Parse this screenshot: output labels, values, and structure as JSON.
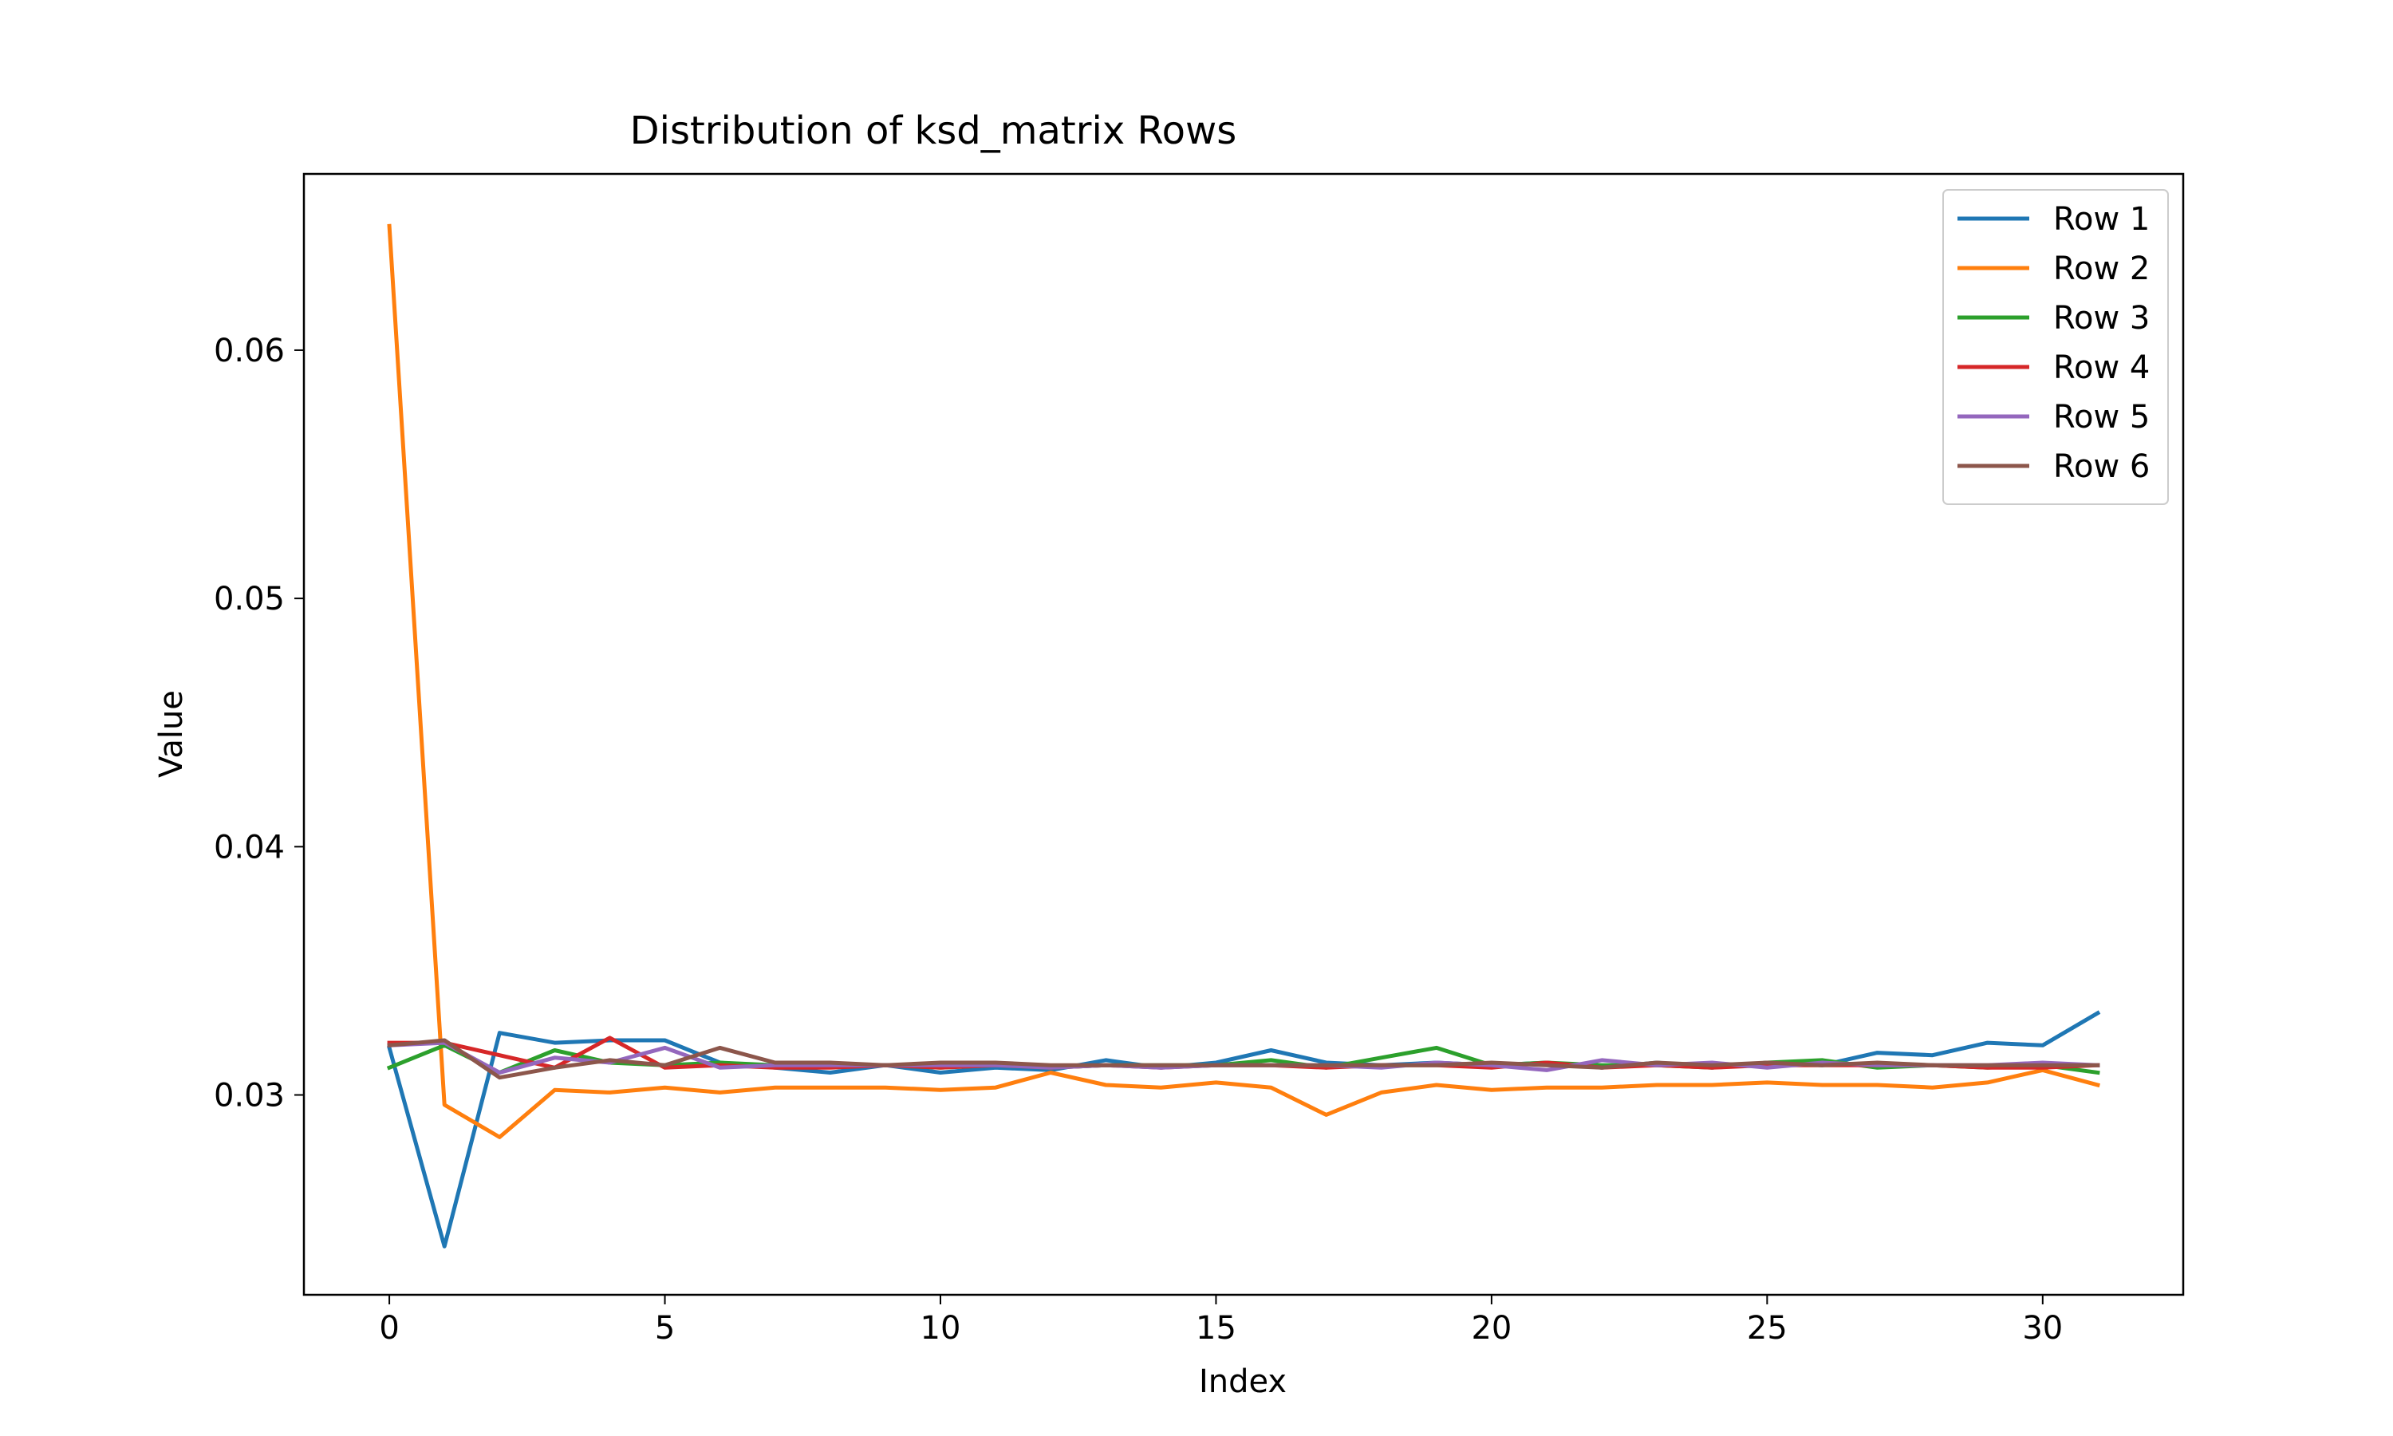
{
  "chart_data": {
    "type": "line",
    "title": "Distribution of ksd_matrix Rows",
    "xlabel": "Index",
    "ylabel": "Value",
    "xlim": [
      -1.55,
      32.55
    ],
    "ylim": [
      0.02195,
      0.0671
    ],
    "x_ticks": [
      0,
      5,
      10,
      15,
      20,
      25,
      30
    ],
    "x_tick_labels": [
      "0",
      "5",
      "10",
      "15",
      "20",
      "25",
      "30"
    ],
    "y_ticks": [
      0.03,
      0.04,
      0.05,
      0.06
    ],
    "y_tick_labels": [
      "0.03",
      "0.04",
      "0.05",
      "0.06"
    ],
    "grid": false,
    "legend_position": "top-right",
    "x": [
      0,
      1,
      2,
      3,
      4,
      5,
      6,
      7,
      8,
      9,
      10,
      11,
      12,
      13,
      14,
      15,
      16,
      17,
      18,
      19,
      20,
      21,
      22,
      23,
      24,
      25,
      26,
      27,
      28,
      29,
      30,
      31
    ],
    "series": [
      {
        "name": "Row 1",
        "color": "#1f77b4",
        "values": [
          0.0319,
          0.0239,
          0.0325,
          0.0321,
          0.0322,
          0.0322,
          0.0313,
          0.0311,
          0.0309,
          0.0312,
          0.0309,
          0.0311,
          0.031,
          0.0314,
          0.0311,
          0.0313,
          0.0318,
          0.0313,
          0.0312,
          0.0313,
          0.0312,
          0.0313,
          0.0311,
          0.0313,
          0.0311,
          0.0313,
          0.0312,
          0.0317,
          0.0316,
          0.0321,
          0.032,
          0.0333
        ]
      },
      {
        "name": "Row 2",
        "color": "#ff7f0e",
        "values": [
          0.065,
          0.0296,
          0.0283,
          0.0302,
          0.0301,
          0.0303,
          0.0301,
          0.0303,
          0.0303,
          0.0303,
          0.0302,
          0.0303,
          0.0309,
          0.0304,
          0.0303,
          0.0305,
          0.0303,
          0.0292,
          0.0301,
          0.0304,
          0.0302,
          0.0303,
          0.0303,
          0.0304,
          0.0304,
          0.0305,
          0.0304,
          0.0304,
          0.0303,
          0.0305,
          0.031,
          0.0304
        ]
      },
      {
        "name": "Row 3",
        "color": "#2ca02c",
        "values": [
          0.0311,
          0.032,
          0.0309,
          0.0318,
          0.0313,
          0.0312,
          0.0313,
          0.0312,
          0.0312,
          0.0312,
          0.0311,
          0.0312,
          0.0311,
          0.0312,
          0.0312,
          0.0312,
          0.0314,
          0.0311,
          0.0315,
          0.0319,
          0.0312,
          0.0313,
          0.0312,
          0.0312,
          0.0311,
          0.0313,
          0.0314,
          0.0311,
          0.0312,
          0.0311,
          0.0312,
          0.0309
        ]
      },
      {
        "name": "Row 4",
        "color": "#d62728",
        "values": [
          0.0321,
          0.0321,
          0.0316,
          0.0311,
          0.0323,
          0.0311,
          0.0312,
          0.0311,
          0.0311,
          0.0312,
          0.0311,
          0.0312,
          0.0311,
          0.0312,
          0.0311,
          0.0312,
          0.0312,
          0.0311,
          0.0312,
          0.0312,
          0.0311,
          0.0313,
          0.0311,
          0.0312,
          0.0311,
          0.0312,
          0.0312,
          0.0312,
          0.0312,
          0.0311,
          0.0311,
          0.0312
        ]
      },
      {
        "name": "Row 5",
        "color": "#9467bd",
        "values": [
          0.032,
          0.0321,
          0.0309,
          0.0315,
          0.0313,
          0.0319,
          0.0311,
          0.0312,
          0.0312,
          0.0312,
          0.0312,
          0.0312,
          0.0311,
          0.0312,
          0.0311,
          0.0312,
          0.0312,
          0.0312,
          0.0311,
          0.0313,
          0.0312,
          0.031,
          0.0314,
          0.0312,
          0.0313,
          0.0311,
          0.0313,
          0.0312,
          0.0312,
          0.0312,
          0.0313,
          0.0312
        ]
      },
      {
        "name": "Row 6",
        "color": "#8c564b",
        "values": [
          0.032,
          0.0322,
          0.0307,
          0.0311,
          0.0314,
          0.0312,
          0.0319,
          0.0313,
          0.0313,
          0.0312,
          0.0313,
          0.0313,
          0.0312,
          0.0312,
          0.0312,
          0.0312,
          0.0312,
          0.0312,
          0.0312,
          0.0312,
          0.0313,
          0.0312,
          0.0311,
          0.0313,
          0.0312,
          0.0313,
          0.0312,
          0.0313,
          0.0312,
          0.0312,
          0.0312,
          0.0312
        ]
      }
    ]
  }
}
